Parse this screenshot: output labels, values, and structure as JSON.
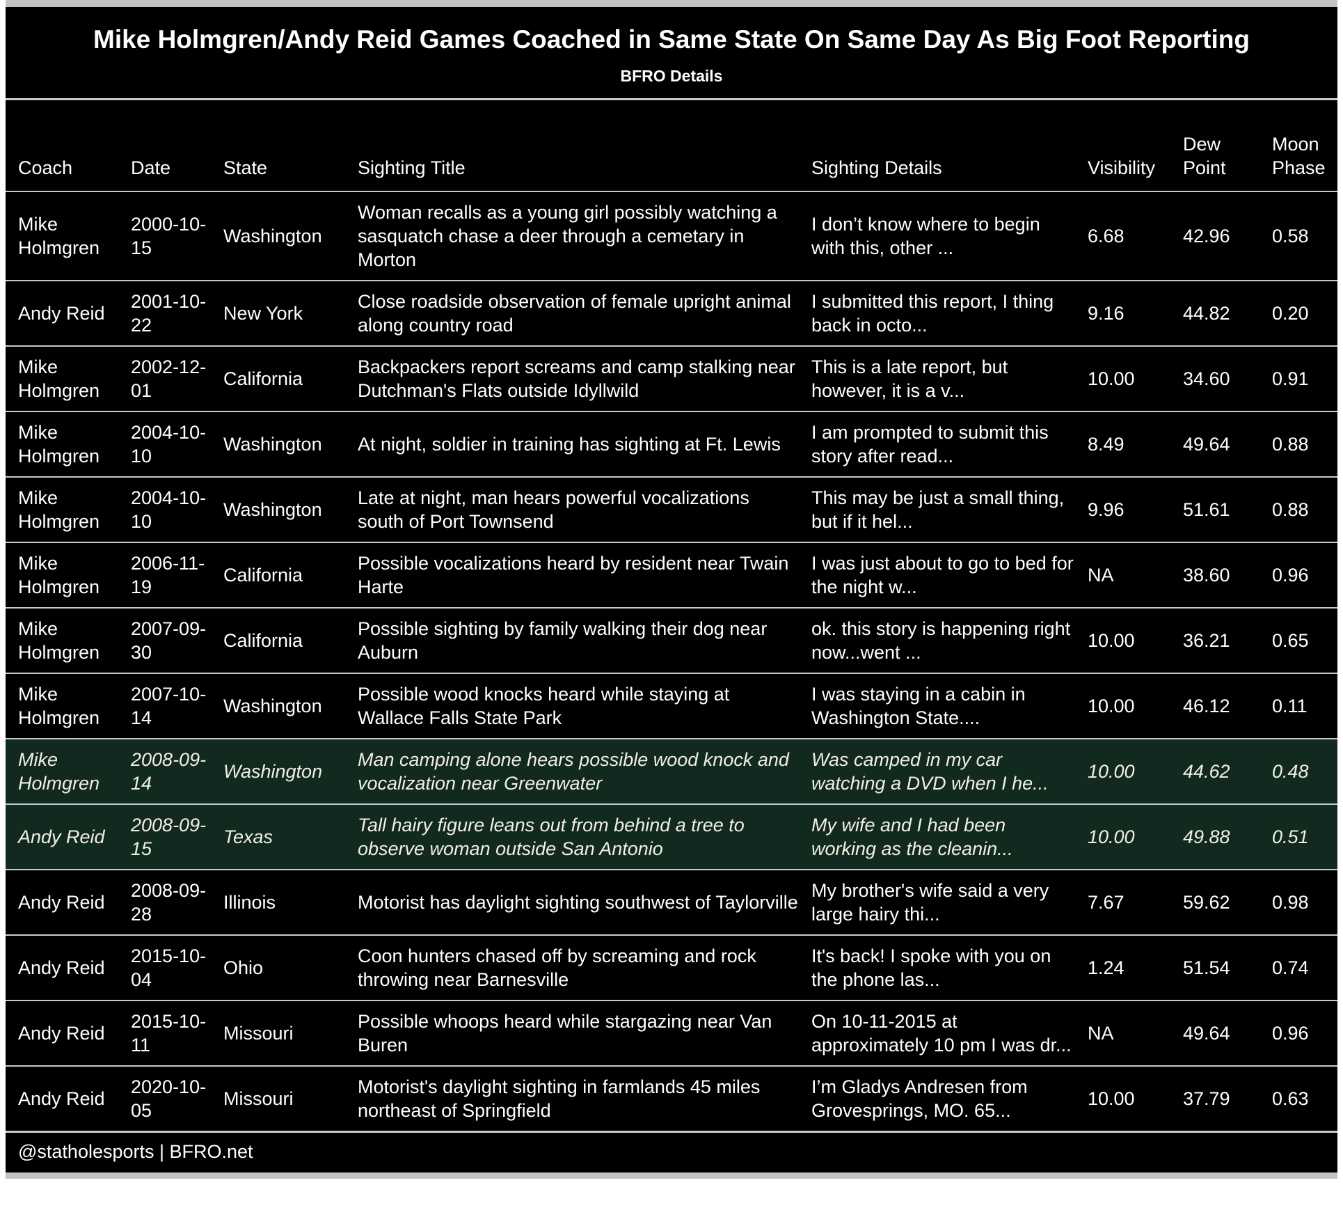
{
  "title": "Mike Holmgren/Andy Reid Games Coached in Same State On Same Day As Big Foot Reporting",
  "subtitle": "BFRO Details",
  "footer": "@statholesports | BFRO.net",
  "colors": {
    "table_bg": "#000000",
    "text": "#ffffff",
    "highlight_bg": "#12291f",
    "highlight_text": "#f1efe2",
    "separator": "#c9c9c9",
    "page_bg": "#ffffff"
  },
  "columns": [
    "Coach",
    "Date",
    "State",
    "Sighting Title",
    "Sighting Details",
    "Visibility",
    "Dew Point",
    "Moon Phase"
  ],
  "rows": [
    {
      "coach": "Mike Holmgren",
      "date": "2000-10-15",
      "state": "Washington",
      "sighting_title": "Woman recalls as a young girl possibly watching a sasquatch chase a deer through a cemetary in Morton",
      "sighting_details": "I don’t know where to begin with this, other ...",
      "visibility": "6.68",
      "dew_point": "42.96",
      "moon_phase": "0.58",
      "highlight": false
    },
    {
      "coach": "Andy Reid",
      "date": "2001-10-22",
      "state": "New York",
      "sighting_title": "Close roadside observation of female upright animal along country road",
      "sighting_details": "I submitted this report, I thing back in octo...",
      "visibility": "9.16",
      "dew_point": "44.82",
      "moon_phase": "0.20",
      "highlight": false
    },
    {
      "coach": "Mike Holmgren",
      "date": "2002-12-01",
      "state": "California",
      "sighting_title": "Backpackers report screams and camp stalking near Dutchman's Flats outside Idyllwild",
      "sighting_details": "This is a late report, but however, it is a v...",
      "visibility": "10.00",
      "dew_point": "34.60",
      "moon_phase": "0.91",
      "highlight": false
    },
    {
      "coach": "Mike Holmgren",
      "date": "2004-10-10",
      "state": "Washington",
      "sighting_title": "At night, soldier in training has sighting at Ft. Lewis",
      "sighting_details": "I am prompted to submit this story after read...",
      "visibility": "8.49",
      "dew_point": "49.64",
      "moon_phase": "0.88",
      "highlight": false
    },
    {
      "coach": "Mike Holmgren",
      "date": "2004-10-10",
      "state": "Washington",
      "sighting_title": "Late at night, man hears powerful vocalizations south of Port Townsend",
      "sighting_details": "This may be just a small thing, but if it hel...",
      "visibility": "9.96",
      "dew_point": "51.61",
      "moon_phase": "0.88",
      "highlight": false
    },
    {
      "coach": "Mike Holmgren",
      "date": "2006-11-19",
      "state": "California",
      "sighting_title": "Possible vocalizations heard by resident near Twain Harte",
      "sighting_details": "I was just about to go to bed for the night w...",
      "visibility": "NA",
      "dew_point": "38.60",
      "moon_phase": "0.96",
      "highlight": false
    },
    {
      "coach": "Mike Holmgren",
      "date": "2007-09-30",
      "state": "California",
      "sighting_title": "Possible sighting by family walking their dog near Auburn",
      "sighting_details": "ok. this story is happening right now...went ...",
      "visibility": "10.00",
      "dew_point": "36.21",
      "moon_phase": "0.65",
      "highlight": false
    },
    {
      "coach": "Mike Holmgren",
      "date": "2007-10-14",
      "state": "Washington",
      "sighting_title": "Possible wood knocks heard while staying at Wallace Falls State Park",
      "sighting_details": "I was staying in a cabin in Washington State....",
      "visibility": "10.00",
      "dew_point": "46.12",
      "moon_phase": "0.11",
      "highlight": false
    },
    {
      "coach": "Mike Holmgren",
      "date": "2008-09-14",
      "state": "Washington",
      "sighting_title": "Man camping alone hears possible wood knock and vocalization near Greenwater",
      "sighting_details": "Was camped in my car watching a DVD when I he...",
      "visibility": "10.00",
      "dew_point": "44.62",
      "moon_phase": "0.48",
      "highlight": true
    },
    {
      "coach": "Andy Reid",
      "date": "2008-09-15",
      "state": "Texas",
      "sighting_title": "Tall hairy figure leans out from behind a tree to observe woman outside San Antonio",
      "sighting_details": "My wife and I had been working as the cleanin...",
      "visibility": "10.00",
      "dew_point": "49.88",
      "moon_phase": "0.51",
      "highlight": true
    },
    {
      "coach": "Andy Reid",
      "date": "2008-09-28",
      "state": "Illinois",
      "sighting_title": "Motorist has daylight sighting southwest of Taylorville",
      "sighting_details": "My brother's wife said a very large hairy thi...",
      "visibility": "7.67",
      "dew_point": "59.62",
      "moon_phase": "0.98",
      "highlight": false
    },
    {
      "coach": "Andy Reid",
      "date": "2015-10-04",
      "state": "Ohio",
      "sighting_title": "Coon hunters chased off by screaming and rock throwing near Barnesville",
      "sighting_details": "It's back! I spoke with you on the phone las...",
      "visibility": "1.24",
      "dew_point": "51.54",
      "moon_phase": "0.74",
      "highlight": false
    },
    {
      "coach": "Andy Reid",
      "date": "2015-10-11",
      "state": "Missouri",
      "sighting_title": "Possible whoops heard while stargazing near Van Buren",
      "sighting_details": "On 10-11-2015 at approximately 10 pm I was dr...",
      "visibility": "NA",
      "dew_point": "49.64",
      "moon_phase": "0.96",
      "highlight": false
    },
    {
      "coach": "Andy Reid",
      "date": "2020-10-05",
      "state": "Missouri",
      "sighting_title": "Motorist's daylight sighting in farmlands 45 miles northeast of Springfield",
      "sighting_details": "I’m Gladys Andresen from Grovesprings, MO. 65...",
      "visibility": "10.00",
      "dew_point": "37.79",
      "moon_phase": "0.63",
      "highlight": false
    }
  ]
}
